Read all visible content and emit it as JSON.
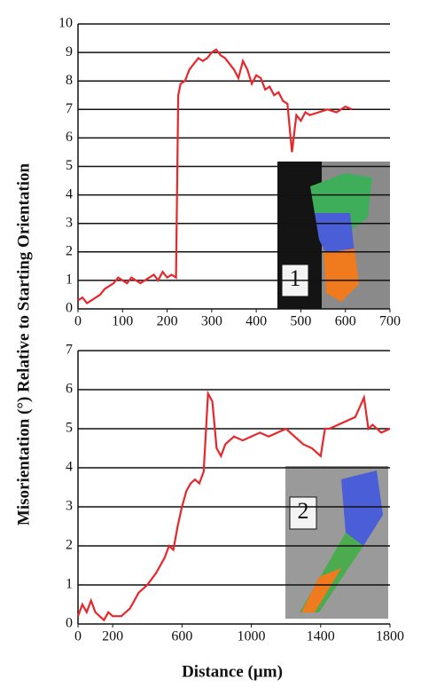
{
  "chart_data": [
    {
      "type": "line",
      "ylabel": "Misorientation (°) Relative to Starting  Orientation",
      "inset_label": "1",
      "x": [
        0,
        10,
        20,
        30,
        40,
        50,
        60,
        70,
        80,
        90,
        100,
        110,
        120,
        130,
        140,
        150,
        160,
        170,
        180,
        190,
        200,
        210,
        220,
        225,
        230,
        240,
        250,
        260,
        270,
        280,
        290,
        300,
        310,
        320,
        330,
        340,
        350,
        360,
        370,
        380,
        390,
        400,
        410,
        420,
        430,
        440,
        450,
        460,
        470,
        480,
        490,
        500,
        510,
        520,
        540,
        560,
        580,
        600,
        615
      ],
      "series": [
        {
          "color": "#e8262b",
          "values": [
            0.3,
            0.4,
            0.2,
            0.3,
            0.4,
            0.5,
            0.7,
            0.8,
            0.9,
            1.1,
            1.0,
            0.9,
            1.1,
            1.0,
            0.9,
            1.0,
            1.1,
            1.2,
            1.0,
            1.3,
            1.1,
            1.2,
            1.1,
            7.5,
            7.9,
            8.0,
            8.4,
            8.6,
            8.8,
            8.7,
            8.8,
            9.0,
            9.1,
            8.9,
            8.8,
            8.6,
            8.4,
            8.1,
            8.7,
            8.4,
            7.9,
            8.2,
            8.1,
            7.7,
            7.8,
            7.5,
            7.6,
            7.3,
            7.2,
            5.5,
            6.8,
            6.6,
            6.9,
            6.8,
            6.9,
            7.0,
            6.9,
            7.1,
            7.0
          ]
        }
      ],
      "xlim": [
        0,
        700
      ],
      "xticks": [
        0,
        100,
        200,
        300,
        400,
        500,
        600,
        700
      ],
      "ylim": [
        0,
        10
      ],
      "yticks": [
        0,
        1,
        2,
        3,
        4,
        5,
        6,
        7,
        8,
        9,
        10
      ],
      "grid": true
    },
    {
      "type": "line",
      "xlabel": "Distance (µm)",
      "inset_label": "2",
      "x": [
        0,
        25,
        50,
        75,
        100,
        125,
        150,
        175,
        200,
        250,
        300,
        350,
        400,
        450,
        500,
        525,
        550,
        575,
        600,
        625,
        650,
        675,
        700,
        725,
        750,
        775,
        800,
        825,
        850,
        900,
        950,
        1000,
        1050,
        1100,
        1150,
        1200,
        1250,
        1300,
        1350,
        1400,
        1425,
        1450,
        1500,
        1550,
        1600,
        1650,
        1675,
        1700,
        1750,
        1800
      ],
      "series": [
        {
          "color": "#e8262b",
          "values": [
            0.2,
            0.5,
            0.3,
            0.6,
            0.3,
            0.2,
            0.1,
            0.3,
            0.2,
            0.2,
            0.4,
            0.8,
            1.0,
            1.3,
            1.7,
            2.0,
            1.9,
            2.5,
            3.0,
            3.4,
            3.6,
            3.7,
            3.6,
            3.9,
            5.9,
            5.7,
            4.5,
            4.3,
            4.6,
            4.8,
            4.7,
            4.8,
            4.9,
            4.8,
            4.9,
            5.0,
            4.8,
            4.6,
            4.5,
            4.3,
            5.0,
            5.0,
            5.1,
            5.2,
            5.3,
            5.8,
            5.0,
            5.1,
            4.9,
            5.0
          ]
        }
      ],
      "xlim": [
        0,
        1800
      ],
      "xticks": [
        0,
        200,
        600,
        1000,
        1400,
        1800
      ],
      "ylim": [
        0,
        7
      ],
      "yticks": [
        0,
        1,
        2,
        3,
        4,
        5,
        6,
        7
      ],
      "grid": true
    }
  ]
}
